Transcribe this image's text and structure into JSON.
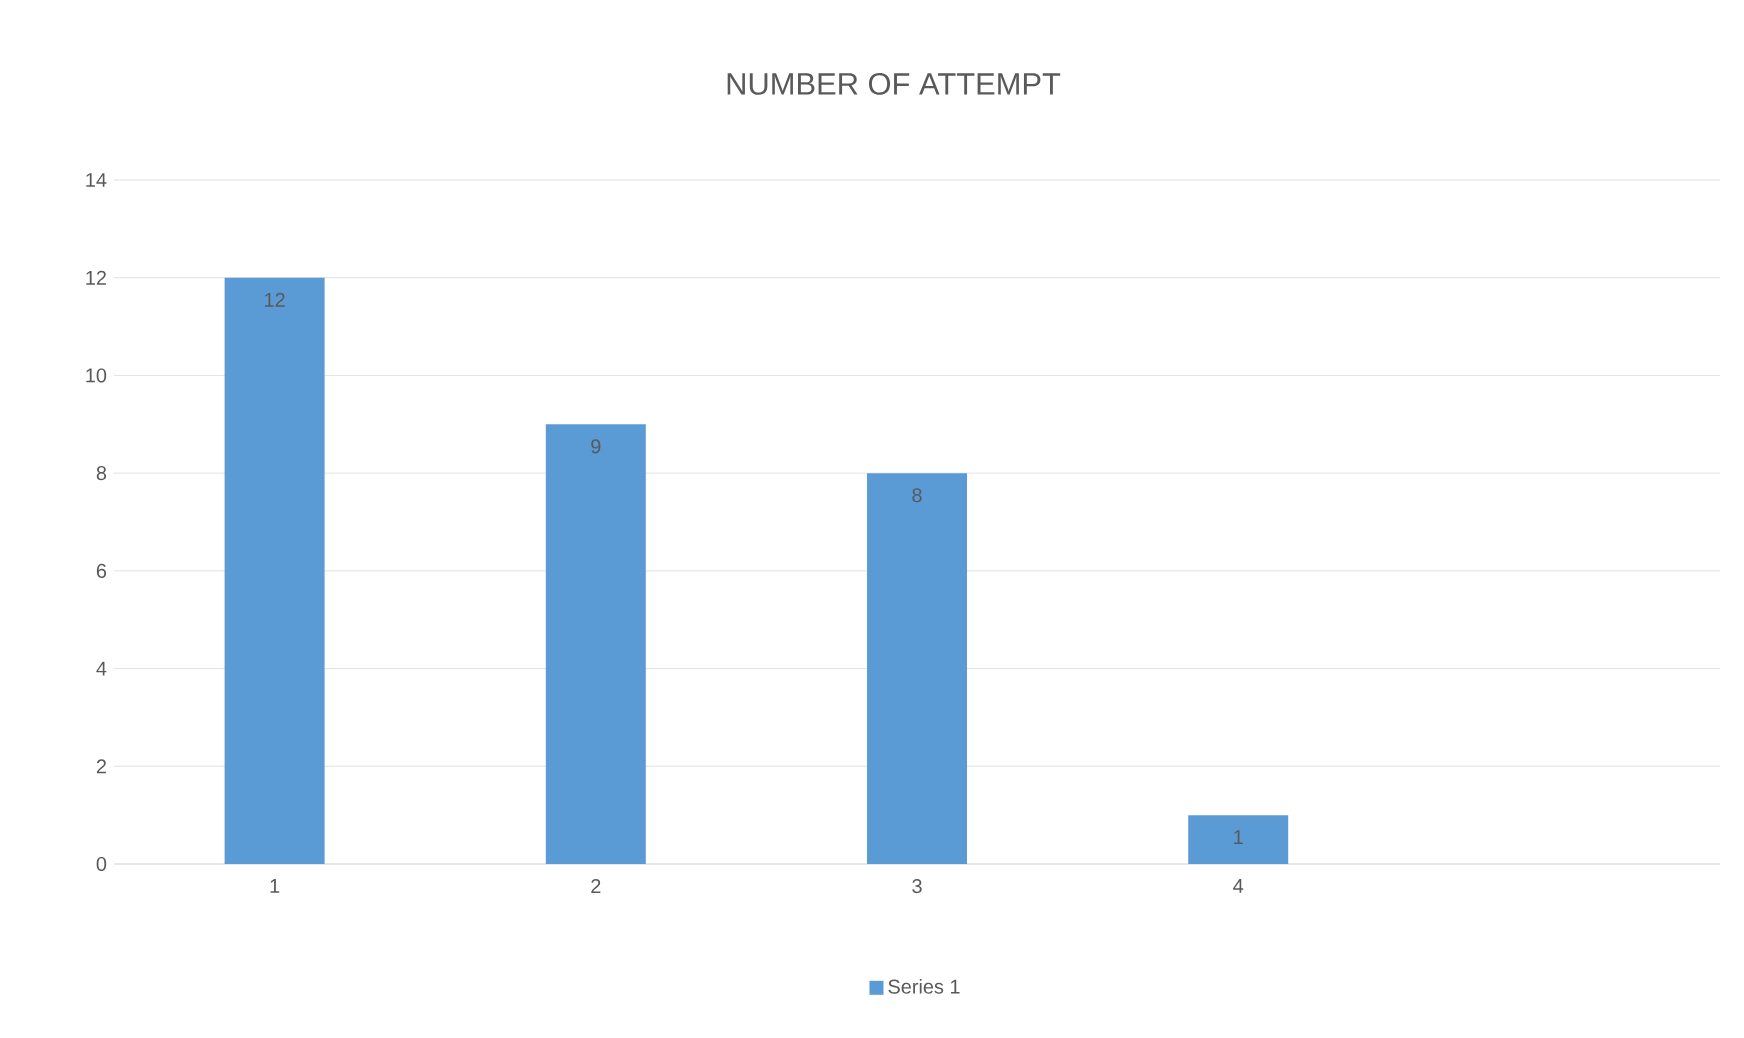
{
  "chart_data": {
    "type": "bar",
    "title": "NUMBER OF ATTEMPT",
    "categories": [
      "1",
      "2",
      "3",
      "4",
      null
    ],
    "series": [
      {
        "name": "Series 1",
        "color": "#5b9bd5",
        "values": [
          12,
          9,
          8,
          1,
          null
        ]
      }
    ],
    "ylim": [
      0,
      14
    ],
    "yticks": [
      0,
      2,
      4,
      6,
      8,
      10,
      12,
      14
    ],
    "grid": "y",
    "legend": "bottom",
    "data_labels": true
  }
}
